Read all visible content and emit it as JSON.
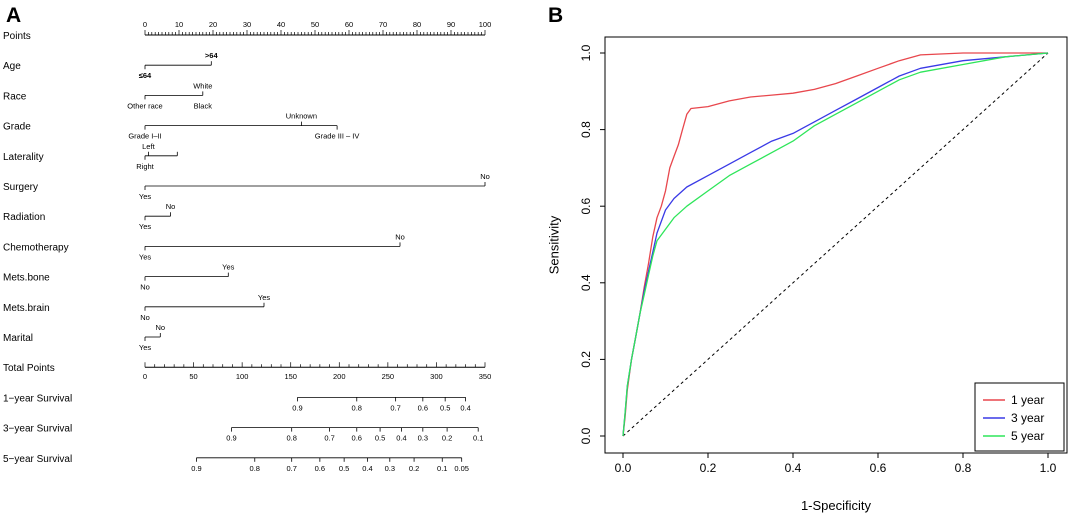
{
  "chart_data": [
    {
      "type": "nomogram",
      "panel_label": "A",
      "points_axis": {
        "label": "Points",
        "min": 0,
        "max": 100,
        "ticks": [
          0,
          10,
          20,
          30,
          40,
          50,
          60,
          70,
          80,
          90,
          100
        ]
      },
      "variables": [
        {
          "label": "Age",
          "levels": [
            {
              "name": "≤64",
              "points": 0,
              "pos": "below",
              "bold": true
            },
            {
              "name": ">64",
              "points": 19.5,
              "pos": "above",
              "bold": true
            }
          ]
        },
        {
          "label": "Race",
          "levels": [
            {
              "name": "Other race",
              "points": 0,
              "pos": "below"
            },
            {
              "name": "White",
              "points": 17,
              "pos": "above"
            },
            {
              "name": "Black",
              "points": 17,
              "pos": "below"
            }
          ]
        },
        {
          "label": "Grade",
          "levels": [
            {
              "name": "Grade I–II",
              "points": 0,
              "pos": "below"
            },
            {
              "name": "Unknown",
              "points": 46,
              "pos": "above"
            },
            {
              "name": "Grade III – IV",
              "points": 56.5,
              "pos": "below"
            }
          ]
        },
        {
          "label": "Laterality",
          "levels": [
            {
              "name": "Right",
              "points": 0,
              "pos": "below"
            },
            {
              "name": "Left",
              "points": 1,
              "pos": "above"
            },
            {
              "name": "",
              "points": 9.5,
              "pos": "above"
            }
          ]
        },
        {
          "label": "Surgery",
          "levels": [
            {
              "name": "Yes",
              "points": 0,
              "pos": "below"
            },
            {
              "name": "No",
              "points": 100,
              "pos": "above"
            }
          ]
        },
        {
          "label": "Radiation",
          "levels": [
            {
              "name": "Yes",
              "points": 0,
              "pos": "below"
            },
            {
              "name": "No",
              "points": 7.5,
              "pos": "above"
            }
          ]
        },
        {
          "label": "Chemotherapy",
          "levels": [
            {
              "name": "Yes",
              "points": 0,
              "pos": "below"
            },
            {
              "name": "No",
              "points": 75,
              "pos": "above"
            }
          ]
        },
        {
          "label": "Mets.bone",
          "levels": [
            {
              "name": "No",
              "points": 0,
              "pos": "below"
            },
            {
              "name": "Yes",
              "points": 24.5,
              "pos": "above"
            }
          ]
        },
        {
          "label": "Mets.brain",
          "levels": [
            {
              "name": "No",
              "points": 0,
              "pos": "below"
            },
            {
              "name": "Yes",
              "points": 35,
              "pos": "above"
            }
          ]
        },
        {
          "label": "Marital",
          "levels": [
            {
              "name": "Yes",
              "points": 0,
              "pos": "below"
            },
            {
              "name": "No",
              "points": 4.5,
              "pos": "above"
            }
          ]
        }
      ],
      "total_points": {
        "label": "Total Points",
        "min": 0,
        "max": 350,
        "ticks": [
          0,
          50,
          100,
          150,
          200,
          250,
          300,
          350
        ]
      },
      "survival_axes": [
        {
          "label": "1−year Survival",
          "ticks": [
            {
              "label": "0.9",
              "total": 157
            },
            {
              "label": "0.8",
              "total": 218
            },
            {
              "label": "0.7",
              "total": 258
            },
            {
              "label": "0.6",
              "total": 286
            },
            {
              "label": "0.5",
              "total": 309
            },
            {
              "label": "0.4",
              "total": 330
            }
          ]
        },
        {
          "label": "3−year Survival",
          "ticks": [
            {
              "label": "0.9",
              "total": 89
            },
            {
              "label": "0.8",
              "total": 151
            },
            {
              "label": "0.7",
              "total": 190
            },
            {
              "label": "0.6",
              "total": 218
            },
            {
              "label": "0.5",
              "total": 242
            },
            {
              "label": "0.4",
              "total": 264
            },
            {
              "label": "0.3",
              "total": 286
            },
            {
              "label": "0.2",
              "total": 311
            },
            {
              "label": "0.1",
              "total": 343
            }
          ]
        },
        {
          "label": "5−year Survival",
          "ticks": [
            {
              "label": "0.9",
              "total": 53
            },
            {
              "label": "0.8",
              "total": 113
            },
            {
              "label": "0.7",
              "total": 151
            },
            {
              "label": "0.6",
              "total": 180
            },
            {
              "label": "0.5",
              "total": 205
            },
            {
              "label": "0.4",
              "total": 229
            },
            {
              "label": "0.3",
              "total": 252
            },
            {
              "label": "0.2",
              "total": 277
            },
            {
              "label": "0.1",
              "total": 306
            },
            {
              "label": "0.05",
              "total": 326
            }
          ]
        }
      ]
    },
    {
      "type": "line",
      "panel_label": "B",
      "title": "",
      "xlabel": "1-Specificity",
      "ylabel": "Sensitivity",
      "xlim": [
        0,
        1
      ],
      "ylim": [
        0,
        1
      ],
      "xticks": [
        "0.0",
        "0.2",
        "0.4",
        "0.6",
        "0.8",
        "1.0"
      ],
      "yticks": [
        "0.0",
        "0.2",
        "0.4",
        "0.6",
        "0.8",
        "1.0"
      ],
      "legend_position": "bottom-right",
      "reference_line": "diagonal-dashed",
      "series": [
        {
          "name": "1 year",
          "color": "#e8474d",
          "points": [
            [
              0,
              0
            ],
            [
              0.005,
              0.05
            ],
            [
              0.01,
              0.12
            ],
            [
              0.02,
              0.2
            ],
            [
              0.03,
              0.26
            ],
            [
              0.04,
              0.32
            ],
            [
              0.05,
              0.39
            ],
            [
              0.06,
              0.45
            ],
            [
              0.07,
              0.52
            ],
            [
              0.08,
              0.57
            ],
            [
              0.09,
              0.6
            ],
            [
              0.1,
              0.64
            ],
            [
              0.11,
              0.7
            ],
            [
              0.12,
              0.73
            ],
            [
              0.13,
              0.76
            ],
            [
              0.14,
              0.8
            ],
            [
              0.15,
              0.84
            ],
            [
              0.16,
              0.855
            ],
            [
              0.2,
              0.86
            ],
            [
              0.25,
              0.875
            ],
            [
              0.3,
              0.885
            ],
            [
              0.35,
              0.89
            ],
            [
              0.4,
              0.895
            ],
            [
              0.45,
              0.905
            ],
            [
              0.5,
              0.92
            ],
            [
              0.55,
              0.94
            ],
            [
              0.6,
              0.96
            ],
            [
              0.65,
              0.98
            ],
            [
              0.7,
              0.995
            ],
            [
              0.8,
              1
            ],
            [
              1,
              1
            ]
          ]
        },
        {
          "name": "3 year",
          "color": "#3a3ae6",
          "points": [
            [
              0,
              0
            ],
            [
              0.005,
              0.06
            ],
            [
              0.01,
              0.13
            ],
            [
              0.02,
              0.2
            ],
            [
              0.03,
              0.26
            ],
            [
              0.04,
              0.32
            ],
            [
              0.05,
              0.38
            ],
            [
              0.06,
              0.43
            ],
            [
              0.07,
              0.48
            ],
            [
              0.08,
              0.53
            ],
            [
              0.1,
              0.59
            ],
            [
              0.12,
              0.62
            ],
            [
              0.15,
              0.65
            ],
            [
              0.2,
              0.68
            ],
            [
              0.25,
              0.71
            ],
            [
              0.3,
              0.74
            ],
            [
              0.35,
              0.77
            ],
            [
              0.4,
              0.79
            ],
            [
              0.45,
              0.82
            ],
            [
              0.5,
              0.85
            ],
            [
              0.55,
              0.88
            ],
            [
              0.6,
              0.91
            ],
            [
              0.65,
              0.94
            ],
            [
              0.7,
              0.96
            ],
            [
              0.8,
              0.98
            ],
            [
              0.9,
              0.99
            ],
            [
              1,
              1
            ]
          ]
        },
        {
          "name": "5 year",
          "color": "#2ee55a",
          "points": [
            [
              0,
              0
            ],
            [
              0.005,
              0.06
            ],
            [
              0.01,
              0.13
            ],
            [
              0.02,
              0.2
            ],
            [
              0.03,
              0.26
            ],
            [
              0.04,
              0.32
            ],
            [
              0.05,
              0.37
            ],
            [
              0.06,
              0.42
            ],
            [
              0.07,
              0.47
            ],
            [
              0.08,
              0.51
            ],
            [
              0.1,
              0.54
            ],
            [
              0.12,
              0.57
            ],
            [
              0.15,
              0.6
            ],
            [
              0.2,
              0.64
            ],
            [
              0.25,
              0.68
            ],
            [
              0.3,
              0.71
            ],
            [
              0.35,
              0.74
            ],
            [
              0.4,
              0.77
            ],
            [
              0.45,
              0.81
            ],
            [
              0.5,
              0.84
            ],
            [
              0.55,
              0.87
            ],
            [
              0.6,
              0.9
            ],
            [
              0.65,
              0.93
            ],
            [
              0.7,
              0.95
            ],
            [
              0.8,
              0.97
            ],
            [
              0.9,
              0.99
            ],
            [
              1,
              1
            ]
          ]
        }
      ]
    }
  ]
}
